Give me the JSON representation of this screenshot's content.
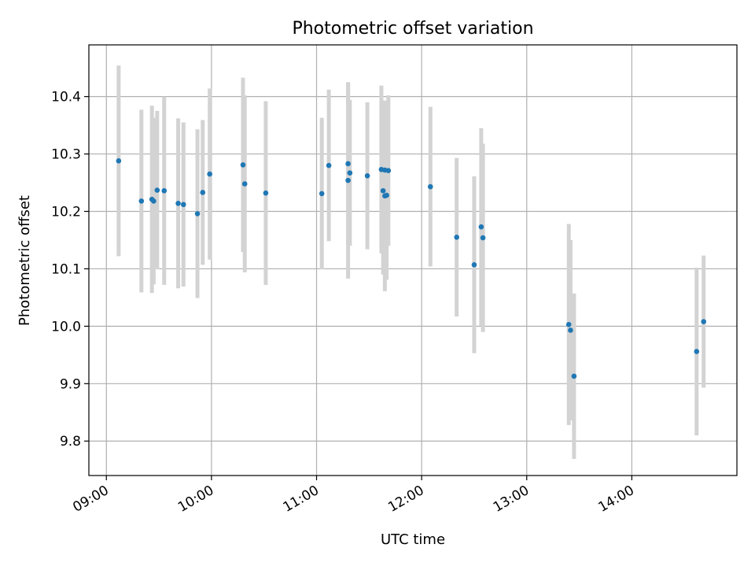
{
  "chart_data": {
    "type": "scatter",
    "title": "Photometric offset variation",
    "xlabel": "UTC time",
    "ylabel": "Photometric offset",
    "x_ticks": [
      "09:00",
      "10:00",
      "11:00",
      "12:00",
      "13:00",
      "14:00"
    ],
    "y_ticks": [
      "9.8",
      "9.9",
      "10.0",
      "10.1",
      "10.2",
      "10.3",
      "10.4"
    ],
    "xlim": [
      "08:50",
      "15:00"
    ],
    "ylim": [
      9.74,
      10.49
    ],
    "grid": true,
    "marker_color": "#1f77b4",
    "errorbar_color": "#d3d3d3",
    "series": [
      {
        "points": [
          {
            "x": "09:07",
            "y": 10.288,
            "err": 0.166
          },
          {
            "x": "09:20",
            "y": 10.218,
            "err": 0.159
          },
          {
            "x": "09:26",
            "y": 10.221,
            "err": 0.163
          },
          {
            "x": "09:27",
            "y": 10.218,
            "err": 0.145
          },
          {
            "x": "09:29",
            "y": 10.237,
            "err": 0.138
          },
          {
            "x": "09:33",
            "y": 10.236,
            "err": 0.164
          },
          {
            "x": "09:41",
            "y": 10.214,
            "err": 0.148
          },
          {
            "x": "09:44",
            "y": 10.212,
            "err": 0.143
          },
          {
            "x": "09:52",
            "y": 10.196,
            "err": 0.147
          },
          {
            "x": "09:55",
            "y": 10.233,
            "err": 0.126
          },
          {
            "x": "09:59",
            "y": 10.265,
            "err": 0.149
          },
          {
            "x": "10:18",
            "y": 10.281,
            "err": 0.152
          },
          {
            "x": "10:19",
            "y": 10.248,
            "err": 0.154
          },
          {
            "x": "10:31",
            "y": 10.232,
            "err": 0.16
          },
          {
            "x": "11:03",
            "y": 10.231,
            "err": 0.132
          },
          {
            "x": "11:07",
            "y": 10.28,
            "err": 0.132
          },
          {
            "x": "11:18",
            "y": 10.254,
            "err": 0.171
          },
          {
            "x": "11:18",
            "y": 10.283,
            "err": 0.141
          },
          {
            "x": "11:19",
            "y": 10.267,
            "err": 0.127
          },
          {
            "x": "11:29",
            "y": 10.262,
            "err": 0.128
          },
          {
            "x": "11:37",
            "y": 10.273,
            "err": 0.146
          },
          {
            "x": "11:38",
            "y": 10.236,
            "err": 0.146
          },
          {
            "x": "11:39",
            "y": 10.272,
            "err": 0.109
          },
          {
            "x": "11:39",
            "y": 10.227,
            "err": 0.166
          },
          {
            "x": "11:40",
            "y": 10.228,
            "err": 0.147
          },
          {
            "x": "11:41",
            "y": 10.271,
            "err": 0.131
          },
          {
            "x": "12:05",
            "y": 10.243,
            "err": 0.139
          },
          {
            "x": "12:20",
            "y": 10.155,
            "err": 0.138
          },
          {
            "x": "12:30",
            "y": 10.107,
            "err": 0.154
          },
          {
            "x": "12:34",
            "y": 10.173,
            "err": 0.172
          },
          {
            "x": "12:35",
            "y": 10.154,
            "err": 0.164
          },
          {
            "x": "13:24",
            "y": 10.003,
            "err": 0.175
          },
          {
            "x": "13:25",
            "y": 9.993,
            "err": 0.157
          },
          {
            "x": "13:27",
            "y": 9.913,
            "err": 0.144
          },
          {
            "x": "14:37",
            "y": 9.956,
            "err": 0.146
          },
          {
            "x": "14:41",
            "y": 10.008,
            "err": 0.115
          }
        ]
      }
    ]
  }
}
